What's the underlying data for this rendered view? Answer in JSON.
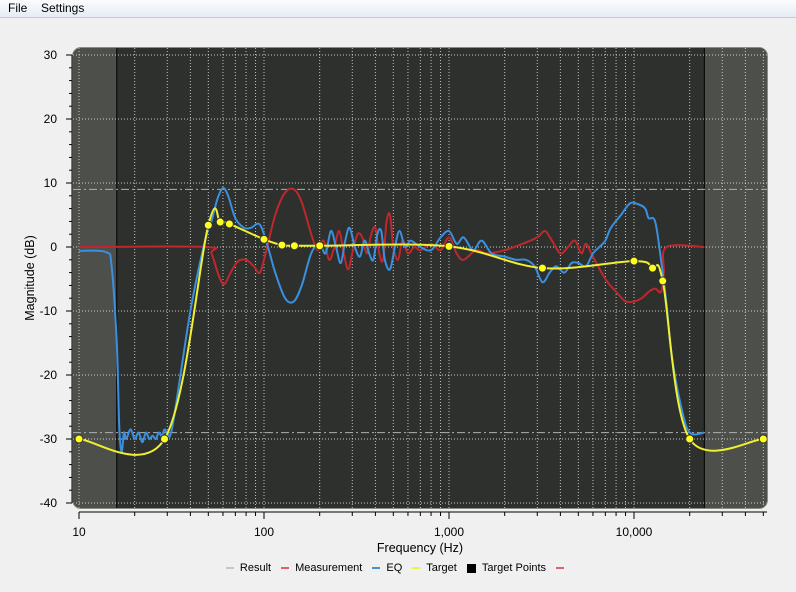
{
  "menu": {
    "items": [
      "File",
      "Settings"
    ]
  },
  "colors": {
    "plot_bg": "#2e302d",
    "shade": "#4d4f4b",
    "measurement": "#c0272d",
    "eq": "#3a8fe0",
    "target": "#f0f030",
    "target_point": "#ffff20",
    "result": "#a0a0a0"
  },
  "chart_data": {
    "type": "line",
    "xlabel": "Frequency (Hz)",
    "ylabel": "Magnitude (dB)",
    "xscale": "log",
    "xlim": [
      10,
      50000
    ],
    "ylim": [
      -40,
      30
    ],
    "x_ticks": [
      {
        "v": 10,
        "label": "10"
      },
      {
        "v": 100,
        "label": "100"
      },
      {
        "v": 1000,
        "label": "1,000"
      },
      {
        "v": 10000,
        "label": "10,000"
      }
    ],
    "y_ticks": [
      30,
      20,
      10,
      0,
      -10,
      -20,
      -30,
      -40
    ],
    "grid": true,
    "shaded_ranges_hz": [
      [
        10,
        16
      ],
      [
        24000,
        50000
      ]
    ],
    "reference_lines_db": [
      9,
      -29
    ],
    "legend_placement": "bottom",
    "legend": [
      {
        "label": "Result",
        "color": "#c8c8c8",
        "kind": "line"
      },
      {
        "label": "Measurement",
        "color": "#e06070",
        "kind": "line"
      },
      {
        "label": "EQ",
        "color": "#4a90d0",
        "kind": "line"
      },
      {
        "label": "Target",
        "color": "#f0f040",
        "kind": "line"
      },
      {
        "label": "Target Points",
        "color": "#000000",
        "kind": "square"
      },
      {
        "label": "",
        "color": "#e06070",
        "kind": "line"
      }
    ],
    "series": [
      {
        "name": "Measurement",
        "points": [
          [
            10,
            0
          ],
          [
            48,
            0
          ],
          [
            52,
            -1
          ],
          [
            57,
            -4.5
          ],
          [
            61,
            -5.8
          ],
          [
            66,
            -4
          ],
          [
            72,
            -2.3
          ],
          [
            80,
            -2
          ],
          [
            88,
            -3
          ],
          [
            95,
            -4
          ],
          [
            102,
            -1
          ],
          [
            115,
            5
          ],
          [
            130,
            8.5
          ],
          [
            145,
            9
          ],
          [
            160,
            7
          ],
          [
            180,
            2
          ],
          [
            195,
            -0.5
          ],
          [
            210,
            1
          ],
          [
            225,
            -2
          ],
          [
            240,
            0
          ],
          [
            255,
            2.5
          ],
          [
            270,
            -1
          ],
          [
            285,
            -3.5
          ],
          [
            300,
            -1
          ],
          [
            320,
            2
          ],
          [
            340,
            1.5
          ],
          [
            360,
            -1
          ],
          [
            380,
            2
          ],
          [
            400,
            3
          ],
          [
            420,
            -1
          ],
          [
            440,
            -2
          ],
          [
            460,
            4
          ],
          [
            480,
            5
          ],
          [
            500,
            0
          ],
          [
            530,
            -2
          ],
          [
            560,
            1
          ],
          [
            600,
            -1
          ],
          [
            650,
            0
          ],
          [
            700,
            -0.5
          ],
          [
            800,
            0.5
          ],
          [
            900,
            -0.5
          ],
          [
            1000,
            1.5
          ],
          [
            1100,
            -1
          ],
          [
            1200,
            -2
          ],
          [
            1400,
            -0.5
          ],
          [
            1600,
            -1
          ],
          [
            2000,
            -0.5
          ],
          [
            2500,
            0.5
          ],
          [
            3000,
            1.5
          ],
          [
            3300,
            2.5
          ],
          [
            3600,
            1
          ],
          [
            4000,
            -1
          ],
          [
            4400,
            0
          ],
          [
            4800,
            1
          ],
          [
            5200,
            -1
          ],
          [
            5500,
            0.5
          ],
          [
            6000,
            -1.5
          ],
          [
            7000,
            -5
          ],
          [
            8000,
            -7
          ],
          [
            9000,
            -8.5
          ],
          [
            10000,
            -8.5
          ],
          [
            11000,
            -8
          ],
          [
            12000,
            -7
          ],
          [
            13000,
            -6.5
          ],
          [
            14000,
            -7
          ],
          [
            14500,
            -4
          ],
          [
            15000,
            0
          ],
          [
            24000,
            0
          ]
        ]
      },
      {
        "name": "EQ",
        "points": [
          [
            10,
            -0.6
          ],
          [
            14,
            -0.8
          ],
          [
            15,
            -3
          ],
          [
            16,
            -15
          ],
          [
            16.5,
            -28
          ],
          [
            17,
            -32
          ],
          [
            17.5,
            -29
          ],
          [
            18,
            -30
          ],
          [
            19,
            -28.5
          ],
          [
            20,
            -30
          ],
          [
            21,
            -29
          ],
          [
            22,
            -30.5
          ],
          [
            23,
            -29
          ],
          [
            24,
            -30
          ],
          [
            25,
            -29.5
          ],
          [
            26,
            -30
          ],
          [
            27,
            -29
          ],
          [
            28,
            -29.5
          ],
          [
            29,
            -28.5
          ],
          [
            30,
            -29
          ],
          [
            32,
            -28
          ],
          [
            40,
            -10
          ],
          [
            48,
            1
          ],
          [
            52,
            4
          ],
          [
            56,
            7.5
          ],
          [
            60,
            9.2
          ],
          [
            64,
            8
          ],
          [
            70,
            4.5
          ],
          [
            78,
            3
          ],
          [
            85,
            3
          ],
          [
            95,
            3.5
          ],
          [
            105,
            0
          ],
          [
            115,
            -4
          ],
          [
            130,
            -8
          ],
          [
            145,
            -8.5
          ],
          [
            160,
            -6
          ],
          [
            180,
            -1
          ],
          [
            200,
            0.5
          ],
          [
            215,
            -1
          ],
          [
            230,
            2.5
          ],
          [
            245,
            0
          ],
          [
            260,
            -2.5
          ],
          [
            275,
            1
          ],
          [
            290,
            3
          ],
          [
            310,
            0
          ],
          [
            330,
            -1.5
          ],
          [
            350,
            1
          ],
          [
            370,
            -1
          ],
          [
            390,
            -2
          ],
          [
            410,
            2
          ],
          [
            430,
            2.5
          ],
          [
            450,
            -2
          ],
          [
            480,
            -3.5
          ],
          [
            510,
            0
          ],
          [
            540,
            2.5
          ],
          [
            580,
            0
          ],
          [
            620,
            1
          ],
          [
            700,
            0
          ],
          [
            800,
            -0.5
          ],
          [
            900,
            1.5
          ],
          [
            1000,
            2.5
          ],
          [
            1100,
            0.5
          ],
          [
            1200,
            1.5
          ],
          [
            1350,
            -0.5
          ],
          [
            1500,
            1
          ],
          [
            1700,
            -1
          ],
          [
            2000,
            -1.5
          ],
          [
            2300,
            -2
          ],
          [
            2600,
            -2
          ],
          [
            2900,
            -3
          ],
          [
            3200,
            -5.5
          ],
          [
            3500,
            -4
          ],
          [
            3800,
            -3
          ],
          [
            4200,
            -4
          ],
          [
            4600,
            -2.5
          ],
          [
            5000,
            -2.5
          ],
          [
            5500,
            -3
          ],
          [
            6000,
            -1
          ],
          [
            6500,
            0
          ],
          [
            7000,
            1
          ],
          [
            7500,
            3
          ],
          [
            8500,
            5
          ],
          [
            9500,
            6.8
          ],
          [
            10500,
            6.7
          ],
          [
            11500,
            6
          ],
          [
            12000,
            4.5
          ],
          [
            13000,
            4
          ],
          [
            14000,
            -2
          ],
          [
            15000,
            -9
          ],
          [
            16000,
            -17
          ],
          [
            18000,
            -25
          ],
          [
            20000,
            -29
          ],
          [
            24000,
            -29
          ]
        ]
      },
      {
        "name": "Target",
        "points": [
          [
            10,
            -30
          ],
          [
            29,
            -30
          ],
          [
            50,
            3.4
          ],
          [
            58,
            3.9
          ],
          [
            65,
            3.6
          ],
          [
            100,
            1.2
          ],
          [
            125,
            0.3
          ],
          [
            146,
            0.2
          ],
          [
            200,
            0.2
          ],
          [
            1000,
            0.1
          ],
          [
            3200,
            -3.3
          ],
          [
            10000,
            -2.2
          ],
          [
            12600,
            -3.3
          ],
          [
            14300,
            -5.3
          ],
          [
            20000,
            -30
          ],
          [
            50000,
            -30
          ]
        ]
      }
    ],
    "target_points": [
      [
        10,
        -30
      ],
      [
        29,
        -30
      ],
      [
        50,
        3.4
      ],
      [
        58,
        3.9
      ],
      [
        65,
        3.6
      ],
      [
        100,
        1.2
      ],
      [
        125,
        0.3
      ],
      [
        146,
        0.2
      ],
      [
        200,
        0.2
      ],
      [
        1000,
        0.1
      ],
      [
        3200,
        -3.3
      ],
      [
        10000,
        -2.2
      ],
      [
        12600,
        -3.3
      ],
      [
        14300,
        -5.3
      ],
      [
        20000,
        -30
      ],
      [
        50000,
        -30
      ]
    ]
  }
}
